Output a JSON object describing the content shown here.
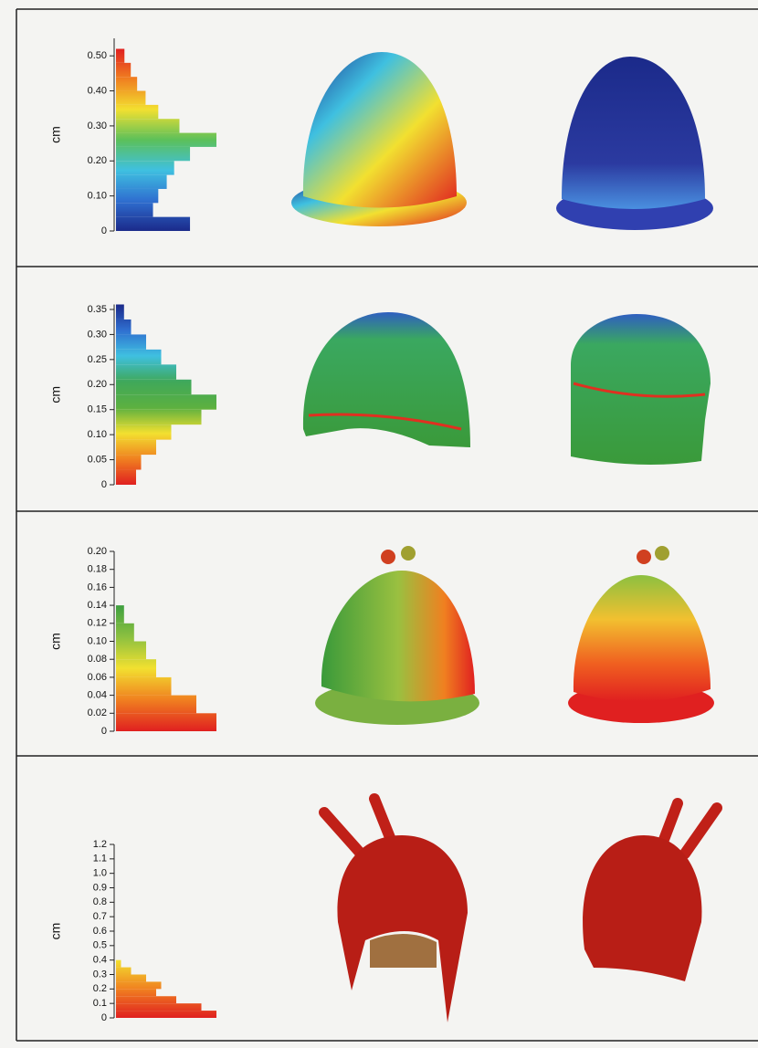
{
  "chart_data": [
    {
      "type": "histogram",
      "ylabel": "cm",
      "ylim": [
        0,
        0.55
      ],
      "yticks": [
        0,
        {
          "value": 0.1,
          "label": "0.10"
        },
        {
          "value": 0.2,
          "label": "0.20"
        },
        {
          "value": 0.3,
          "label": "0.30"
        },
        {
          "value": 0.4,
          "label": "0.40"
        },
        {
          "value": 0.5,
          "label": "0.50"
        }
      ],
      "bins": [
        0,
        0.04,
        0.08,
        0.12,
        0.16,
        0.2,
        0.24,
        0.28,
        0.32,
        0.36,
        0.4,
        0.44,
        0.48,
        0.52
      ],
      "counts": [
        70,
        35,
        40,
        48,
        55,
        70,
        95,
        60,
        40,
        28,
        20,
        14,
        8
      ],
      "colors": [
        "#1b2a8a",
        "#2f6fd0",
        "#3fc0e0",
        "#5cc05a",
        "#f2e030",
        "#f08020",
        "#e02020"
      ]
    },
    {
      "type": "histogram",
      "ylabel": "cm",
      "ylim": [
        0,
        0.36
      ],
      "yticks": [
        0,
        0.05,
        {
          "value": 0.1,
          "label": "0.10"
        },
        0.15,
        {
          "value": 0.2,
          "label": "0.20"
        },
        0.25,
        {
          "value": 0.3,
          "label": "0.30"
        },
        0.35
      ],
      "bins": [
        0,
        0.03,
        0.06,
        0.09,
        0.12,
        0.15,
        0.18,
        0.21,
        0.24,
        0.27,
        0.3,
        0.33,
        0.36
      ],
      "counts": [
        20,
        25,
        40,
        55,
        85,
        100,
        75,
        60,
        45,
        30,
        15,
        8
      ],
      "colors": [
        "#e02020",
        "#f08020",
        "#f2e030",
        "#5cb040",
        "#3fa85a",
        "#3fc0e0",
        "#2f6fd0",
        "#1b2a8a"
      ]
    },
    {
      "type": "histogram",
      "ylabel": "cm",
      "ylim": [
        0,
        0.2
      ],
      "yticks": [
        0,
        0.02,
        0.04,
        0.06,
        0.08,
        {
          "value": 0.1,
          "label": "0.10"
        },
        0.12,
        0.14,
        0.16,
        0.18,
        {
          "value": 0.2,
          "label": "0.20"
        }
      ],
      "bins": [
        0,
        0.02,
        0.04,
        0.06,
        0.08,
        0.1,
        0.12,
        0.14
      ],
      "counts": [
        100,
        80,
        55,
        40,
        30,
        18,
        8
      ],
      "colors": [
        "#e02020",
        "#f08020",
        "#f2e030",
        "#8cc040",
        "#3fa040"
      ]
    },
    {
      "type": "histogram",
      "ylabel": "cm",
      "ylim": [
        0,
        1.2
      ],
      "yticks": [
        0,
        0.1,
        0.2,
        0.3,
        0.4,
        0.5,
        0.6,
        0.7,
        0.8,
        0.9,
        {
          "value": 1,
          "label": "1.0"
        },
        1.1,
        1.2
      ],
      "bins": [
        0,
        0.05,
        0.1,
        0.15,
        0.2,
        0.25,
        0.3,
        0.35,
        0.4
      ],
      "counts": [
        100,
        85,
        60,
        40,
        45,
        30,
        15,
        5
      ],
      "colors": [
        "#e02020",
        "#f08020",
        "#f2e030"
      ]
    }
  ]
}
